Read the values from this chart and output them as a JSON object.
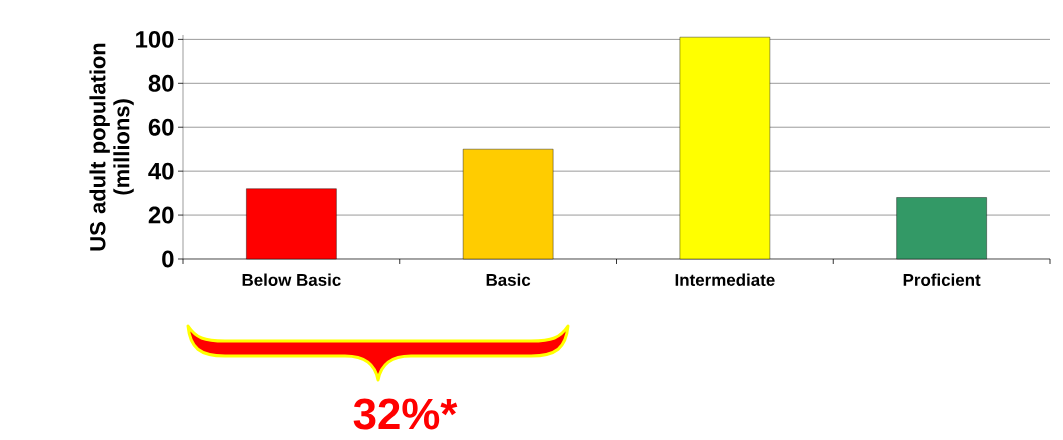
{
  "chart_data": {
    "type": "bar",
    "ylabel": "US adult population (millions)",
    "categories": [
      "Below Basic",
      "Basic",
      "Intermediate",
      "Proficient"
    ],
    "values": [
      32,
      50,
      101,
      28
    ],
    "colors": [
      "#ff0000",
      "#ffcc00",
      "#ffff00",
      "#339966"
    ],
    "ylim": [
      0,
      102
    ],
    "yticks": [
      0,
      20,
      40,
      60,
      80,
      100
    ],
    "grid": "y",
    "annotations": [
      "32%*"
    ]
  }
}
